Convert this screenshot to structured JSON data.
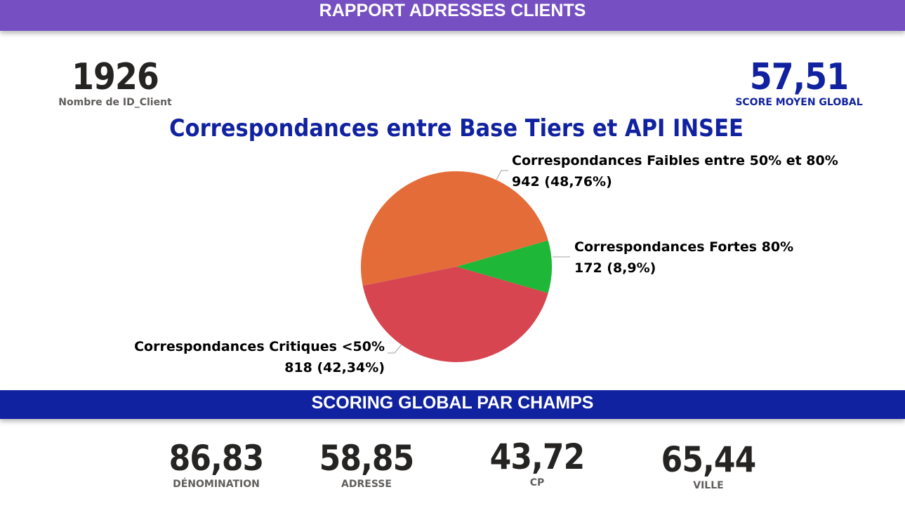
{
  "header": {
    "title": "RAPPORT ADRESSES CLIENTS"
  },
  "kpis": {
    "clients": {
      "value": "1926",
      "label": "Nombre de ID_Client"
    },
    "score": {
      "value": "57,51",
      "label": "SCORE MOYEN GLOBAL"
    }
  },
  "chart_data": {
    "type": "pie",
    "title": "Correspondances entre Base Tiers et API INSEE",
    "slices": [
      {
        "name": "Correspondances Fortes 80%",
        "value": 172,
        "value_label": "172 (8,9%)",
        "color": "#1fb737"
      },
      {
        "name": "Correspondances Critiques <50%",
        "value": 818,
        "value_label": "818 (42,34%)",
        "color": "#d64550"
      },
      {
        "name": "Correspondances Faibles entre 50% et 80%",
        "value": 942,
        "value_label": "942 (48,76%)",
        "color": "#e46c38"
      }
    ]
  },
  "scoring": {
    "title": "SCORING GLOBAL PAR CHAMPS",
    "fields": [
      {
        "value": "86,83",
        "label": "DÉNOMINATION"
      },
      {
        "value": "58,85",
        "label": "ADRESSE"
      },
      {
        "value": "43,72",
        "label": "CP"
      },
      {
        "value": "65,44",
        "label": "VILLE"
      }
    ]
  }
}
